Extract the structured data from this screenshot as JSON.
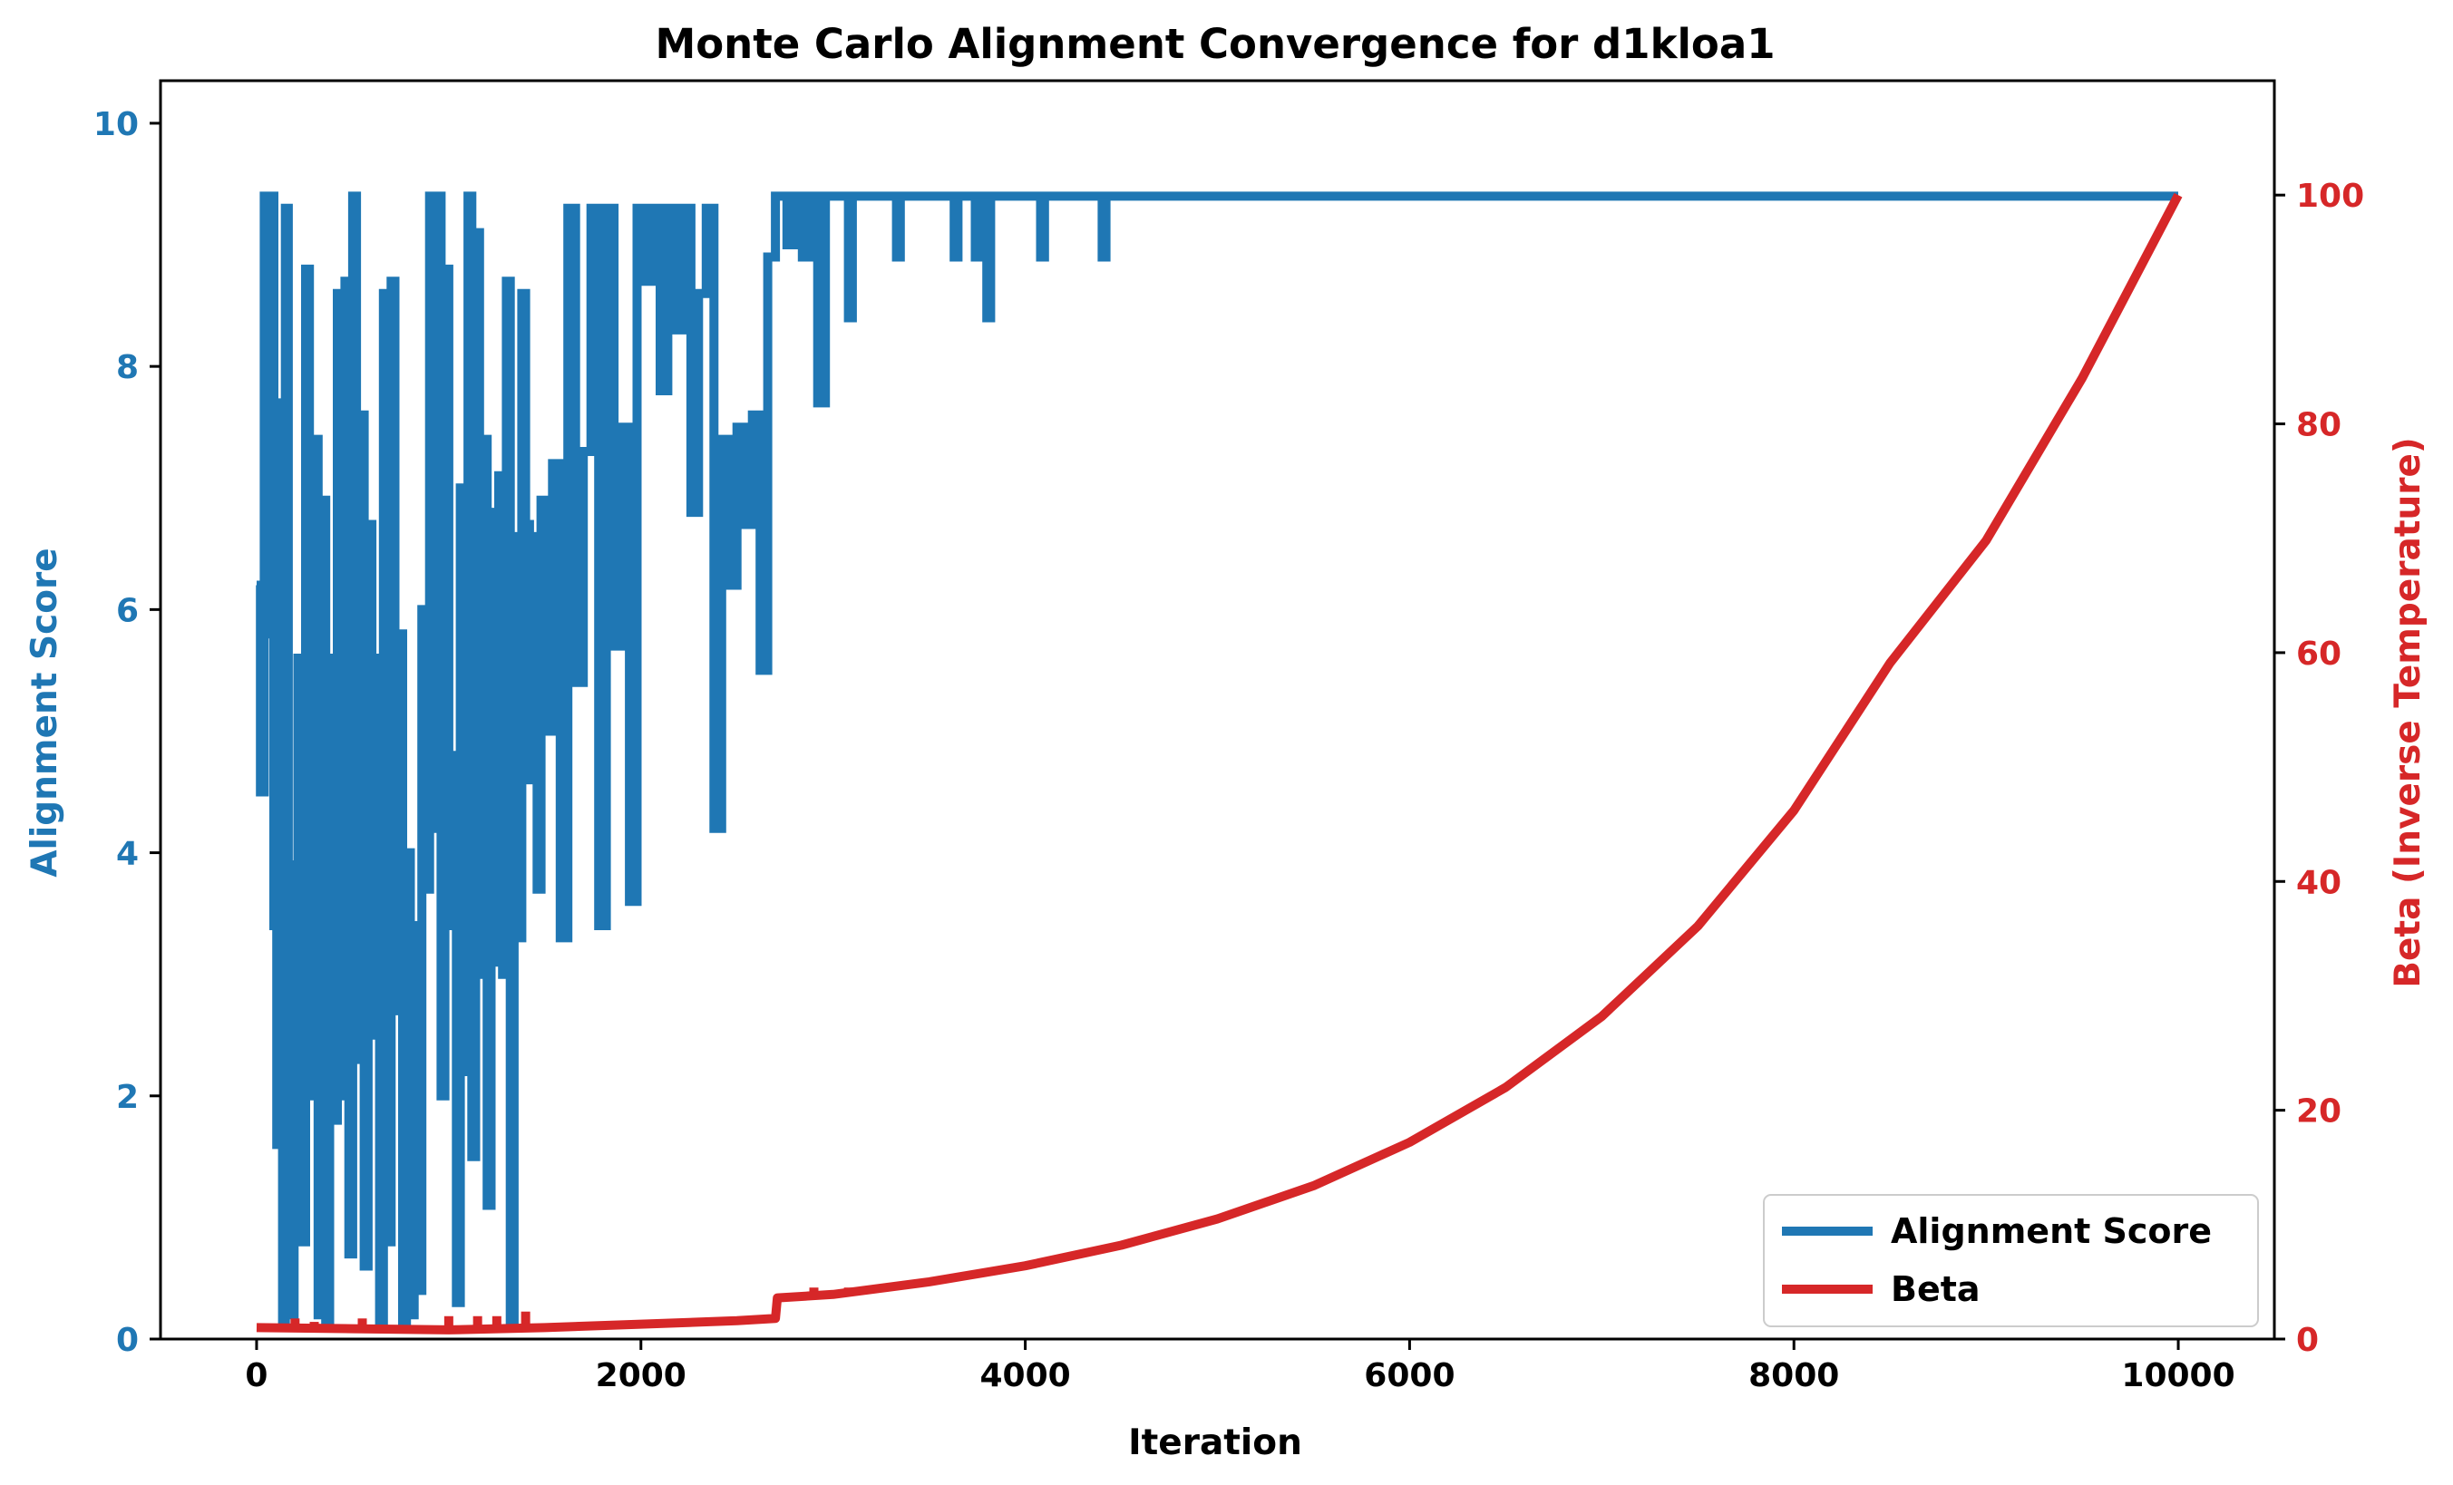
{
  "chart_data": {
    "type": "line",
    "title": "Monte Carlo Alignment Convergence for d1kloa1",
    "xlabel": "Iteration",
    "ylabel_left": "Alignment Score",
    "ylabel_right": "Beta (Inverse Temperature)",
    "xlim": [
      -500,
      10500
    ],
    "ylim_left": [
      0,
      10.35
    ],
    "ylim_right": [
      0,
      110
    ],
    "x_ticks": [
      0,
      2000,
      4000,
      6000,
      8000,
      10000
    ],
    "x_tick_labels": [
      "0",
      "2000",
      "4000",
      "6000",
      "8000",
      "10000"
    ],
    "y_left_ticks": [
      0,
      2,
      4,
      6,
      8,
      10
    ],
    "y_left_tick_labels": [
      "0",
      "2",
      "4",
      "6",
      "8",
      "10"
    ],
    "y_right_ticks": [
      0,
      20,
      40,
      60,
      80,
      100
    ],
    "y_right_tick_labels": [
      "0",
      "20",
      "40",
      "60",
      "80",
      "100"
    ],
    "grid": false,
    "legend_position": "lower-right",
    "colors": {
      "score": "#1f77b4",
      "beta": "#d62728",
      "axes": "#000000"
    },
    "series": [
      {
        "name": "Alignment Score",
        "axis": "left",
        "x": [
          0,
          20,
          40,
          55,
          70,
          90,
          105,
          120,
          135,
          150,
          165,
          180,
          195,
          215,
          235,
          255,
          275,
          300,
          320,
          340,
          360,
          380,
          400,
          420,
          440,
          460,
          480,
          500,
          520,
          540,
          560,
          580,
          600,
          620,
          640,
          660,
          680,
          700,
          720,
          740,
          760,
          780,
          800,
          820,
          840,
          860,
          880,
          900,
          920,
          940,
          960,
          980,
          1000,
          1020,
          1040,
          1060,
          1080,
          1100,
          1120,
          1140,
          1160,
          1180,
          1200,
          1220,
          1240,
          1260,
          1280,
          1300,
          1320,
          1340,
          1360,
          1380,
          1400,
          1420,
          1440,
          1460,
          1480,
          1500,
          1540,
          1580,
          1620,
          1660,
          1700,
          1740,
          1780,
          1820,
          1860,
          1900,
          1940,
          1980,
          2020,
          2060,
          2100,
          2140,
          2180,
          2220,
          2260,
          2300,
          2340,
          2380,
          2420,
          2460,
          2500,
          2540,
          2580,
          2620,
          2660,
          2700,
          2720,
          2760,
          2800,
          2840,
          2880,
          2920,
          2960,
          3000,
          3080,
          3100,
          3300,
          3330,
          3350,
          3600,
          3630,
          3650,
          3720,
          3740,
          3760,
          3780,
          3800,
          3820,
          4050,
          4080,
          4100,
          4380,
          4400,
          4420,
          6000,
          8000,
          10000
        ],
        "values": [
          6.2,
          4.5,
          9.4,
          5.8,
          9.4,
          3.4,
          1.6,
          7.7,
          0.1,
          9.3,
          2.6,
          0.2,
          3.9,
          5.6,
          0.8,
          8.8,
          2.0,
          7.4,
          0.2,
          6.9,
          0.1,
          5.6,
          1.8,
          8.6,
          2.0,
          8.7,
          0.7,
          9.4,
          2.3,
          7.6,
          0.6,
          6.7,
          2.5,
          5.6,
          0.1,
          8.6,
          0.8,
          8.7,
          2.7,
          5.8,
          0.1,
          4.0,
          0.2,
          3.4,
          0.4,
          6.0,
          3.7,
          9.4,
          4.2,
          9.4,
          2.0,
          8.8,
          3.4,
          4.8,
          0.3,
          7.0,
          2.2,
          9.4,
          1.5,
          9.1,
          3.0,
          7.4,
          1.1,
          6.8,
          3.1,
          7.1,
          3.0,
          8.7,
          0.1,
          6.6,
          3.3,
          8.6,
          6.7,
          4.6,
          6.6,
          3.7,
          6.9,
          5.0,
          7.2,
          3.3,
          9.3,
          5.4,
          7.3,
          9.3,
          3.4,
          9.3,
          5.7,
          7.5,
          3.6,
          9.3,
          8.7,
          9.3,
          7.8,
          9.3,
          8.3,
          9.3,
          6.8,
          8.6,
          9.3,
          4.2,
          7.4,
          6.2,
          7.5,
          6.7,
          7.6,
          5.5,
          8.9,
          9.4,
          9.4,
          9.0,
          9.4,
          8.9,
          9.4,
          7.7,
          9.4,
          9.4,
          8.4,
          9.4,
          9.4,
          8.9,
          9.4,
          9.4,
          8.9,
          9.4,
          9.4,
          8.9,
          9.4,
          9.4,
          8.4,
          9.4,
          9.4,
          8.9,
          9.4,
          9.4,
          8.9,
          9.4,
          9.4,
          9.4,
          9.4
        ]
      },
      {
        "name": "Beta",
        "axis": "right",
        "x": [
          0,
          500,
          1000,
          1500,
          2000,
          2500,
          2700,
          2710,
          3000,
          3500,
          4000,
          4500,
          5000,
          5500,
          6000,
          6500,
          7000,
          7500,
          8000,
          8500,
          9000,
          9500,
          10000
        ],
        "values": [
          1.0,
          0.9,
          0.8,
          1.0,
          1.3,
          1.6,
          1.8,
          3.6,
          3.9,
          5.0,
          6.4,
          8.2,
          10.5,
          13.4,
          17.2,
          22.0,
          28.2,
          36.1,
          46.2,
          59.1,
          69.8,
          84.0,
          100.0
        ],
        "spikes": [
          {
            "x": 200,
            "top": 1.8
          },
          {
            "x": 300,
            "top": 1.5
          },
          {
            "x": 550,
            "top": 1.8
          },
          {
            "x": 1000,
            "top": 2.0
          },
          {
            "x": 1150,
            "top": 2.0
          },
          {
            "x": 1250,
            "top": 2.0
          },
          {
            "x": 1400,
            "top": 2.4
          },
          {
            "x": 2850,
            "top": 4.0
          },
          {
            "x": 2900,
            "top": 4.5
          },
          {
            "x": 3080,
            "top": 4.5
          },
          {
            "x": 3330,
            "top": 4.9
          },
          {
            "x": 3630,
            "top": 5.6
          },
          {
            "x": 3740,
            "top": 5.8
          },
          {
            "x": 3800,
            "top": 6.1
          },
          {
            "x": 4080,
            "top": 7.0
          },
          {
            "x": 4400,
            "top": 7.6
          }
        ]
      }
    ]
  }
}
